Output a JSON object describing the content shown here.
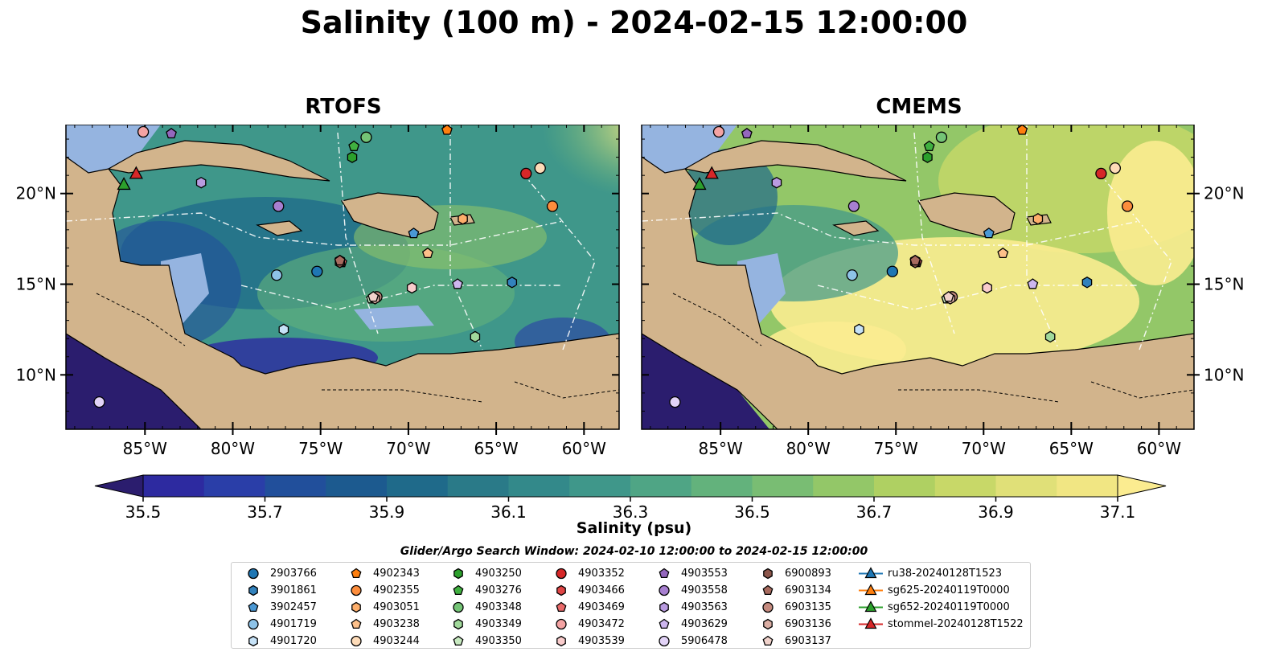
{
  "title": "Salinity (100 m) - 2024-02-15 12:00:00",
  "panels": [
    {
      "title": "RTOFS"
    },
    {
      "title": "CMEMS"
    }
  ],
  "axes": {
    "lon_ticks": [
      "85°W",
      "80°W",
      "75°W",
      "70°W",
      "65°W",
      "60°W"
    ],
    "lat_ticks": [
      "20°N",
      "15°N",
      "10°N"
    ],
    "lon_range": [
      -89.5,
      -58.0
    ],
    "lat_range": [
      7.0,
      23.8
    ]
  },
  "colorbar": {
    "label": "Salinity (psu)",
    "ticks": [
      "35.5",
      "35.7",
      "35.9",
      "36.1",
      "36.3",
      "36.5",
      "36.7",
      "36.9",
      "37.1"
    ],
    "range": [
      35.4,
      37.2
    ],
    "extend": "both",
    "colors": [
      "#2b1d6e",
      "#2d2aa0",
      "#2a3ea8",
      "#214f9b",
      "#1c5a8f",
      "#1f6a8a",
      "#2a7a88",
      "#33898a",
      "#3f978a",
      "#4fa585",
      "#63b27c",
      "#79bd73",
      "#93c768",
      "#afd062",
      "#c8d868",
      "#e0e078",
      "#f1e683",
      "#fbec90"
    ]
  },
  "legend": {
    "title": "Glider/Argo Search Window: 2024-02-10 12:00:00 to 2024-02-15 12:00:00",
    "argo": [
      {
        "id": "2903766",
        "marker": "circle",
        "color": "#1f77b4"
      },
      {
        "id": "3901861",
        "marker": "hexagon",
        "color": "#3282bd"
      },
      {
        "id": "3902457",
        "marker": "pentagon",
        "color": "#4a98d4"
      },
      {
        "id": "4901719",
        "marker": "circle",
        "color": "#8ec3e8"
      },
      {
        "id": "4901720",
        "marker": "hexagon",
        "color": "#c6e2f7"
      },
      {
        "id": "4902343",
        "marker": "pentagon",
        "color": "#ff7f0e"
      },
      {
        "id": "4902355",
        "marker": "circle",
        "color": "#fd8d3c"
      },
      {
        "id": "4903051",
        "marker": "hexagon",
        "color": "#fdae6b"
      },
      {
        "id": "4903238",
        "marker": "pentagon",
        "color": "#fdc08a"
      },
      {
        "id": "4903244",
        "marker": "circle",
        "color": "#fddbb8"
      },
      {
        "id": "4903250",
        "marker": "hexagon",
        "color": "#2ca02c"
      },
      {
        "id": "4903276",
        "marker": "pentagon",
        "color": "#40b040"
      },
      {
        "id": "4903348",
        "marker": "circle",
        "color": "#74c476"
      },
      {
        "id": "4903349",
        "marker": "hexagon",
        "color": "#a1d99b"
      },
      {
        "id": "4903350",
        "marker": "pentagon",
        "color": "#c7e9c0"
      },
      {
        "id": "4903352",
        "marker": "circle",
        "color": "#d62728"
      },
      {
        "id": "4903466",
        "marker": "hexagon",
        "color": "#e04545"
      },
      {
        "id": "4903469",
        "marker": "pentagon",
        "color": "#ea6a6a"
      },
      {
        "id": "4903472",
        "marker": "circle",
        "color": "#f4a3a3"
      },
      {
        "id": "4903539",
        "marker": "hexagon",
        "color": "#f9cccc"
      },
      {
        "id": "4903553",
        "marker": "pentagon",
        "color": "#9467bd"
      },
      {
        "id": "4903558",
        "marker": "circle",
        "color": "#a77fd0"
      },
      {
        "id": "4903563",
        "marker": "hexagon",
        "color": "#b99be0"
      },
      {
        "id": "4903629",
        "marker": "pentagon",
        "color": "#cdb6ee"
      },
      {
        "id": "5906478",
        "marker": "circle",
        "color": "#e2d3f7"
      },
      {
        "id": "6900893",
        "marker": "hexagon",
        "color": "#8c564b"
      },
      {
        "id": "6903134",
        "marker": "pentagon",
        "color": "#a86b5f"
      },
      {
        "id": "6903135",
        "marker": "circle",
        "color": "#c48a7e"
      },
      {
        "id": "6903136",
        "marker": "hexagon",
        "color": "#dbaea4"
      },
      {
        "id": "6903137",
        "marker": "pentagon",
        "color": "#f0d2cb"
      }
    ],
    "gliders": [
      {
        "id": "ru38-20240128T1523",
        "color": "#1f77b4"
      },
      {
        "id": "sg625-20240119T0000",
        "color": "#ff7f0e"
      },
      {
        "id": "sg652-20240119T0000",
        "color": "#2ca02c"
      },
      {
        "id": "stommel-20240128T1522",
        "color": "#d62728"
      }
    ]
  },
  "map_points": [
    {
      "id": "2903766",
      "lon": -75.2,
      "lat": 15.7
    },
    {
      "id": "3901861",
      "lon": -64.1,
      "lat": 15.1
    },
    {
      "id": "3902457",
      "lon": -69.7,
      "lat": 17.8
    },
    {
      "id": "4901719",
      "lon": -77.5,
      "lat": 15.5
    },
    {
      "id": "4901720",
      "lon": -77.1,
      "lat": 12.5
    },
    {
      "id": "4902343",
      "lon": -67.8,
      "lat": 23.5
    },
    {
      "id": "4902355",
      "lon": -61.8,
      "lat": 19.3
    },
    {
      "id": "4903051",
      "lon": -66.9,
      "lat": 18.6
    },
    {
      "id": "4903238",
      "lon": -68.9,
      "lat": 16.7
    },
    {
      "id": "4903244",
      "lon": -62.5,
      "lat": 21.4
    },
    {
      "id": "4903250",
      "lon": -73.2,
      "lat": 22.0
    },
    {
      "id": "4903276",
      "lon": -73.1,
      "lat": 22.6
    },
    {
      "id": "4903348",
      "lon": -72.4,
      "lat": 23.1
    },
    {
      "id": "4903349",
      "lon": -66.2,
      "lat": 12.1
    },
    {
      "id": "4903350",
      "lon": -72.1,
      "lat": 14.2
    },
    {
      "id": "4903352",
      "lon": -63.3,
      "lat": 21.1
    },
    {
      "id": "4903466",
      "lon": -73.9,
      "lat": 16.3
    },
    {
      "id": "4903469",
      "lon": -73.8,
      "lat": 16.2
    },
    {
      "id": "4903472",
      "lon": -85.1,
      "lat": 23.4
    },
    {
      "id": "4903539",
      "lon": -69.8,
      "lat": 14.8
    },
    {
      "id": "4903553",
      "lon": -83.5,
      "lat": 23.3
    },
    {
      "id": "4903558",
      "lon": -77.4,
      "lat": 19.3
    },
    {
      "id": "4903563",
      "lon": -81.8,
      "lat": 20.6
    },
    {
      "id": "4903629",
      "lon": -67.2,
      "lat": 15.0
    },
    {
      "id": "5906478",
      "lon": -87.6,
      "lat": 8.5
    },
    {
      "id": "6900893",
      "lon": -73.9,
      "lat": 16.2
    },
    {
      "id": "6903134",
      "lon": -73.9,
      "lat": 16.3
    },
    {
      "id": "6903135",
      "lon": -71.8,
      "lat": 14.3
    },
    {
      "id": "6903136",
      "lon": -71.9,
      "lat": 14.2
    },
    {
      "id": "6903137",
      "lon": -72.0,
      "lat": 14.3
    }
  ],
  "glider_points": [
    {
      "id": "stommel-20240128T1522",
      "lon": -85.5,
      "lat": 21.1
    },
    {
      "id": "sg652-20240119T0000",
      "lon": -86.2,
      "lat": 20.5
    }
  ]
}
